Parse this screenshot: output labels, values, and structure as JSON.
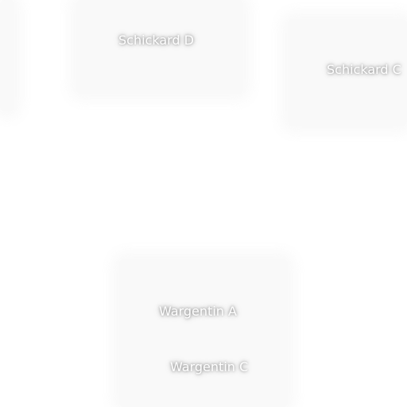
{
  "map": {
    "labels": [
      {
        "name": "Schickard D"
      },
      {
        "name": "Schickard C"
      },
      {
        "name": "Wargentin A"
      },
      {
        "name": "Wargentin C"
      }
    ],
    "colors": {
      "background": "#ffffff",
      "label_text": "#ffffff",
      "label_halo": "#000000"
    }
  }
}
